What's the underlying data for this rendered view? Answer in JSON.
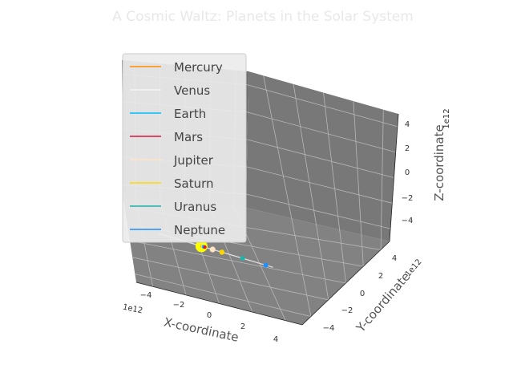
{
  "chart_data": {
    "type": "scatter",
    "title": "A Cosmic Waltz: Planets in the Solar System",
    "xlabel": "X-coordinate",
    "ylabel": "Y-coordinate",
    "zlabel": "Z-coordinate",
    "offset_x": "1e12",
    "offset_y": "1e12",
    "offset_z": "1e12",
    "x_ticks": [
      "−4",
      "−2",
      "0",
      "2",
      "4"
    ],
    "y_ticks": [
      "−4",
      "−2",
      "0",
      "2",
      "4"
    ],
    "z_ticks": [
      "−4",
      "−2",
      "0",
      "2",
      "4"
    ],
    "xlim": [
      -5,
      5
    ],
    "ylim": [
      -5,
      5
    ],
    "zlim": [
      -5,
      5
    ],
    "grid": true,
    "legend_position": "upper-left",
    "sun": {
      "x": -0.5,
      "y": -4.5,
      "z": 0,
      "color": "#ffff00"
    },
    "series": [
      {
        "name": "Mercury",
        "color": "#ff8c00",
        "x": -0.44,
        "y": -4.5,
        "z": 0
      },
      {
        "name": "Venus",
        "color": "#f5f5f5",
        "x": -0.39,
        "y": -4.5,
        "z": 0
      },
      {
        "name": "Earth",
        "color": "#00bfff",
        "x": -0.35,
        "y": -4.5,
        "z": 0
      },
      {
        "name": "Mars",
        "color": "#dc143c",
        "x": -0.27,
        "y": -4.5,
        "z": 0
      },
      {
        "name": "Jupiter",
        "color": "#ffe4c4",
        "x": 0.28,
        "y": -4.5,
        "z": 0
      },
      {
        "name": "Saturn",
        "color": "#ffd700",
        "x": 0.93,
        "y": -4.5,
        "z": 0
      },
      {
        "name": "Uranus",
        "color": "#20b2aa",
        "x": 2.37,
        "y": -4.5,
        "z": 0
      },
      {
        "name": "Neptune",
        "color": "#1e90ff",
        "x": 4.0,
        "y": -4.5,
        "z": 0
      }
    ]
  }
}
